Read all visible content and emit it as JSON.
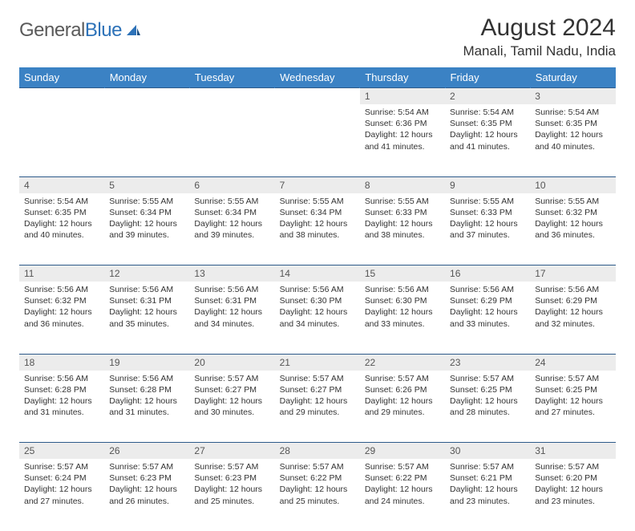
{
  "brand": {
    "name_gray": "General",
    "name_blue": "Blue"
  },
  "title": "August 2024",
  "location": "Manali, Tamil Nadu, India",
  "colors": {
    "header_bg": "#3b82c4",
    "header_text": "#ffffff",
    "daynum_bg": "#ececec",
    "border": "#2d5a8a",
    "logo_gray": "#5a5a5a",
    "logo_blue": "#2d72b8"
  },
  "day_headers": [
    "Sunday",
    "Monday",
    "Tuesday",
    "Wednesday",
    "Thursday",
    "Friday",
    "Saturday"
  ],
  "weeks": [
    {
      "nums": [
        "",
        "",
        "",
        "",
        1,
        2,
        3
      ],
      "cells": [
        null,
        null,
        null,
        null,
        {
          "sunrise": "5:54 AM",
          "sunset": "6:36 PM",
          "daylight": "12 hours and 41 minutes."
        },
        {
          "sunrise": "5:54 AM",
          "sunset": "6:35 PM",
          "daylight": "12 hours and 41 minutes."
        },
        {
          "sunrise": "5:54 AM",
          "sunset": "6:35 PM",
          "daylight": "12 hours and 40 minutes."
        }
      ]
    },
    {
      "nums": [
        4,
        5,
        6,
        7,
        8,
        9,
        10
      ],
      "cells": [
        {
          "sunrise": "5:54 AM",
          "sunset": "6:35 PM",
          "daylight": "12 hours and 40 minutes."
        },
        {
          "sunrise": "5:55 AM",
          "sunset": "6:34 PM",
          "daylight": "12 hours and 39 minutes."
        },
        {
          "sunrise": "5:55 AM",
          "sunset": "6:34 PM",
          "daylight": "12 hours and 39 minutes."
        },
        {
          "sunrise": "5:55 AM",
          "sunset": "6:34 PM",
          "daylight": "12 hours and 38 minutes."
        },
        {
          "sunrise": "5:55 AM",
          "sunset": "6:33 PM",
          "daylight": "12 hours and 38 minutes."
        },
        {
          "sunrise": "5:55 AM",
          "sunset": "6:33 PM",
          "daylight": "12 hours and 37 minutes."
        },
        {
          "sunrise": "5:55 AM",
          "sunset": "6:32 PM",
          "daylight": "12 hours and 36 minutes."
        }
      ]
    },
    {
      "nums": [
        11,
        12,
        13,
        14,
        15,
        16,
        17
      ],
      "cells": [
        {
          "sunrise": "5:56 AM",
          "sunset": "6:32 PM",
          "daylight": "12 hours and 36 minutes."
        },
        {
          "sunrise": "5:56 AM",
          "sunset": "6:31 PM",
          "daylight": "12 hours and 35 minutes."
        },
        {
          "sunrise": "5:56 AM",
          "sunset": "6:31 PM",
          "daylight": "12 hours and 34 minutes."
        },
        {
          "sunrise": "5:56 AM",
          "sunset": "6:30 PM",
          "daylight": "12 hours and 34 minutes."
        },
        {
          "sunrise": "5:56 AM",
          "sunset": "6:30 PM",
          "daylight": "12 hours and 33 minutes."
        },
        {
          "sunrise": "5:56 AM",
          "sunset": "6:29 PM",
          "daylight": "12 hours and 33 minutes."
        },
        {
          "sunrise": "5:56 AM",
          "sunset": "6:29 PM",
          "daylight": "12 hours and 32 minutes."
        }
      ]
    },
    {
      "nums": [
        18,
        19,
        20,
        21,
        22,
        23,
        24
      ],
      "cells": [
        {
          "sunrise": "5:56 AM",
          "sunset": "6:28 PM",
          "daylight": "12 hours and 31 minutes."
        },
        {
          "sunrise": "5:56 AM",
          "sunset": "6:28 PM",
          "daylight": "12 hours and 31 minutes."
        },
        {
          "sunrise": "5:57 AM",
          "sunset": "6:27 PM",
          "daylight": "12 hours and 30 minutes."
        },
        {
          "sunrise": "5:57 AM",
          "sunset": "6:27 PM",
          "daylight": "12 hours and 29 minutes."
        },
        {
          "sunrise": "5:57 AM",
          "sunset": "6:26 PM",
          "daylight": "12 hours and 29 minutes."
        },
        {
          "sunrise": "5:57 AM",
          "sunset": "6:25 PM",
          "daylight": "12 hours and 28 minutes."
        },
        {
          "sunrise": "5:57 AM",
          "sunset": "6:25 PM",
          "daylight": "12 hours and 27 minutes."
        }
      ]
    },
    {
      "nums": [
        25,
        26,
        27,
        28,
        29,
        30,
        31
      ],
      "cells": [
        {
          "sunrise": "5:57 AM",
          "sunset": "6:24 PM",
          "daylight": "12 hours and 27 minutes."
        },
        {
          "sunrise": "5:57 AM",
          "sunset": "6:23 PM",
          "daylight": "12 hours and 26 minutes."
        },
        {
          "sunrise": "5:57 AM",
          "sunset": "6:23 PM",
          "daylight": "12 hours and 25 minutes."
        },
        {
          "sunrise": "5:57 AM",
          "sunset": "6:22 PM",
          "daylight": "12 hours and 25 minutes."
        },
        {
          "sunrise": "5:57 AM",
          "sunset": "6:22 PM",
          "daylight": "12 hours and 24 minutes."
        },
        {
          "sunrise": "5:57 AM",
          "sunset": "6:21 PM",
          "daylight": "12 hours and 23 minutes."
        },
        {
          "sunrise": "5:57 AM",
          "sunset": "6:20 PM",
          "daylight": "12 hours and 23 minutes."
        }
      ]
    }
  ],
  "labels": {
    "sunrise": "Sunrise:",
    "sunset": "Sunset:",
    "daylight": "Daylight:"
  }
}
